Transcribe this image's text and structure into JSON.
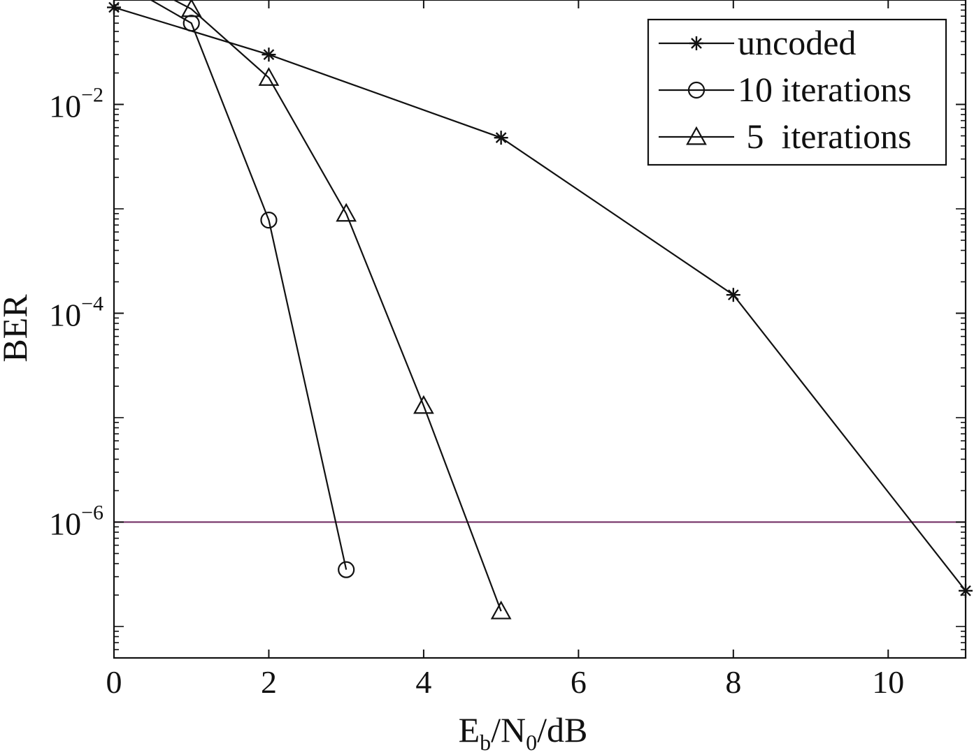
{
  "chart_data": {
    "type": "line",
    "xlabel": {
      "main": "E",
      "sub1": "b",
      "mid": "/N",
      "sub2": "0",
      "tail": "/dB"
    },
    "ylabel": "BER",
    "y_scale": "log",
    "xlim": [
      0,
      11
    ],
    "ylim": [
      5e-08,
      0.1
    ],
    "x_ticks": [
      0,
      2,
      4,
      6,
      8,
      10
    ],
    "y_ticks": [
      {
        "value": 0.01,
        "base": "10",
        "exp": "−2"
      },
      {
        "value": 0.0001,
        "base": "10",
        "exp": "−4"
      },
      {
        "value": 1e-06,
        "base": "10",
        "exp": "−6"
      }
    ],
    "grid": false,
    "legend_position": "top-right",
    "series": [
      {
        "name": "uncoded",
        "marker": "star",
        "x": [
          0,
          2,
          5,
          8,
          11
        ],
        "y": [
          0.085,
          0.03,
          0.0048,
          0.00015,
          2.2e-07
        ]
      },
      {
        "name": "10 iterations",
        "marker": "circle",
        "x": [
          0,
          1,
          2,
          3
        ],
        "y": [
          0.16,
          0.06,
          0.00078,
          3.5e-07
        ]
      },
      {
        "name": " 5  iterations",
        "marker": "triangle",
        "x": [
          0,
          1,
          2,
          3,
          4,
          5
        ],
        "y": [
          0.2,
          0.082,
          0.018,
          0.0009,
          1.3e-05,
          1.4e-07
        ]
      }
    ],
    "reference_line": {
      "y": 1e-06,
      "color": "#7b3b6e"
    }
  }
}
